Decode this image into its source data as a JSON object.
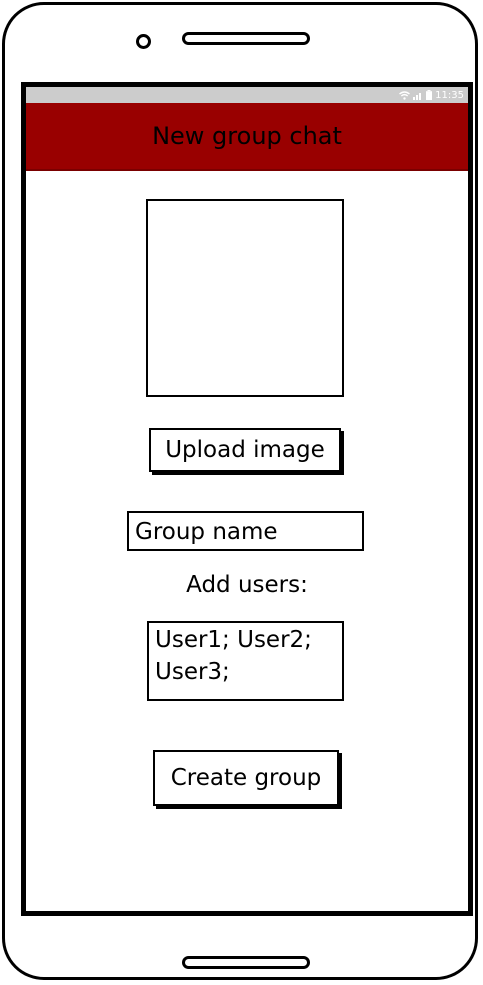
{
  "status_bar": {
    "time": "11:35",
    "icons": [
      "wifi-icon",
      "signal-icon",
      "battery-icon"
    ]
  },
  "app_bar": {
    "title": "New group chat"
  },
  "image_placeholder": {
    "upload_label": "Upload image"
  },
  "group_name": {
    "placeholder": "Group name",
    "value": ""
  },
  "add_users": {
    "label": "Add users:",
    "value": "User1; User2; User3;"
  },
  "actions": {
    "create_label": "Create group"
  },
  "colors": {
    "app_bar": "#990000",
    "status_bar": "#cccccc",
    "outline": "#000000"
  }
}
